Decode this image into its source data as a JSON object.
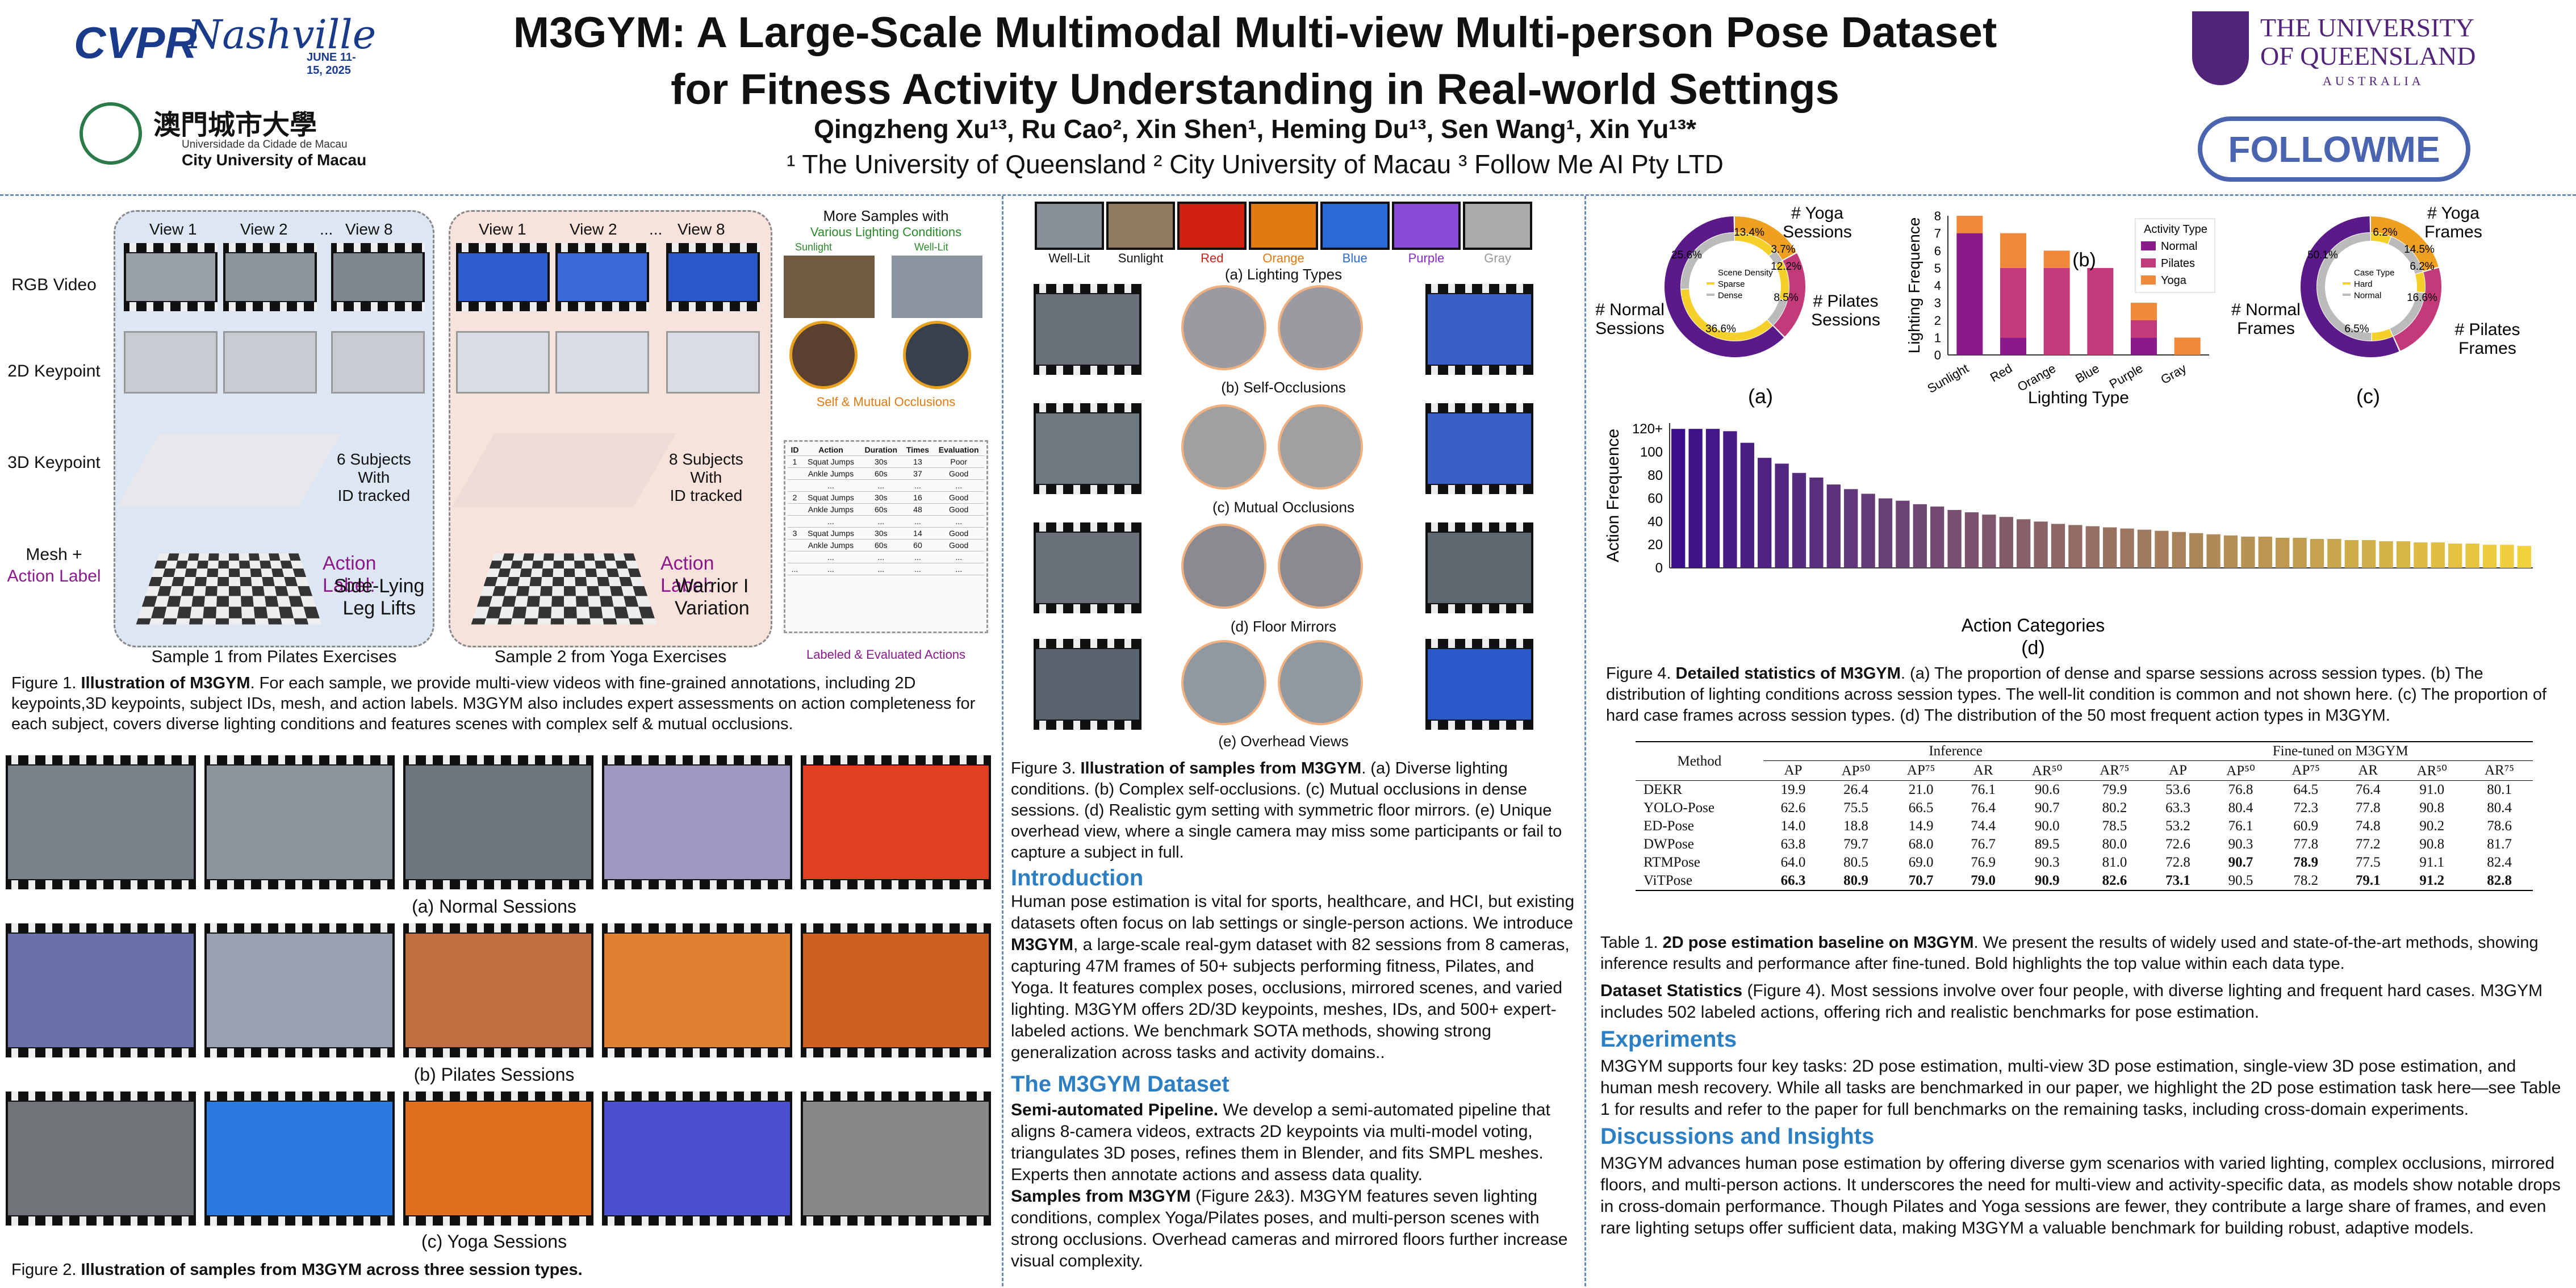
{
  "header": {
    "title_line1": "M3GYM: A Large-Scale Multimodal Multi-view Multi-person Pose Dataset",
    "title_line2": "for Fitness Activity Understanding in Real-world Settings",
    "authors": "Qingzheng Xu¹³, Ru Cao², Xin Shen¹, Heming Du¹³, Sen Wang¹, Xin Yu¹³*",
    "affiliations": "¹ The University of Queensland        ² City University of Macau        ³ Follow Me AI Pty LTD",
    "cvpr": "CVPR",
    "cvpr_city": "Nashville",
    "cvpr_date": "JUNE 11-15, 2025",
    "cityu_cn": "澳門城市大學",
    "cityu_pt": "Universidade da Cidade de Macau",
    "cityu_en": "City University of Macau",
    "uq_line1": "THE UNIVERSITY",
    "uq_line2": "OF QUEENSLAND",
    "uq_line3": "AUSTRALIA",
    "followme": "FOLLOWME"
  },
  "fig1": {
    "row_labels": [
      "RGB Video",
      "2D Keypoint",
      "3D Keypoint",
      "Mesh +"
    ],
    "row_label_action": "Action Label",
    "views": [
      "View 1",
      "View 2",
      "...",
      "View 8"
    ],
    "pilates_subjects": "6 Subjects\nWith\nID tracked",
    "yoga_subjects": "8 Subjects\nWith\nID tracked",
    "action_label_title": "Action Label:",
    "pilates_action": "Side-Lying\nLeg Lifts",
    "yoga_action": "Warrior I\nVariation",
    "sample1": "Sample 1 from Pilates Exercises",
    "sample2": "Sample 2 from Yoga Exercises",
    "more_samples": "More Samples with",
    "various_lighting": "Various Lighting Conditions",
    "sunlight": "Sunlight",
    "welllit": "Well-Lit",
    "self_mutual": "Self & Mutual Occlusions",
    "labeled": "Labeled & Evaluated Actions",
    "tbl_header": [
      "ID",
      "Action",
      "Duration",
      "Times",
      "Evaluation"
    ],
    "tbl_rows": [
      [
        "1",
        "Squat Jumps",
        "30s",
        "13",
        "Poor"
      ],
      [
        "",
        "Ankle Jumps",
        "60s",
        "37",
        "Good"
      ],
      [
        "",
        "...",
        "...",
        "...",
        "..."
      ],
      [
        "2",
        "Squat Jumps",
        "30s",
        "16",
        "Good"
      ],
      [
        "",
        "Ankle Jumps",
        "60s",
        "48",
        "Good"
      ],
      [
        "",
        "...",
        "...",
        "...",
        "..."
      ],
      [
        "3",
        "Squat Jumps",
        "30s",
        "14",
        "Good"
      ],
      [
        "",
        "Ankle Jumps",
        "60s",
        "60",
        "Good"
      ],
      [
        "",
        "...",
        "...",
        "...",
        "..."
      ],
      [
        "...",
        "...",
        "...",
        "...",
        "..."
      ]
    ],
    "caption_bold": "Illustration of M3GYM",
    "caption_prefix": "Figure 1. ",
    "caption_text": ". For each sample, we provide multi-view videos with fine-grained annotations, including 2D keypoints,3D keypoints, subject IDs, mesh, and action labels. M3GYM also includes expert assessments on action completeness for each subject, covers diverse lighting conditions and features scenes with complex self & mutual occlusions."
  },
  "fig2": {
    "labels": [
      "(a) Normal Sessions",
      "(b) Pilates Sessions",
      "(c) Yoga Sessions"
    ],
    "caption_prefix": "Figure 2. ",
    "caption_bold": "Illustration of samples from M3GYM across three session types."
  },
  "fig3": {
    "lighting_labels": [
      "Well-Lit",
      "Sunlight",
      "Red",
      "Orange",
      "Blue",
      "Purple",
      "Gray"
    ],
    "lighting_colors": [
      "#111",
      "#111",
      "#d0201a",
      "#e07a10",
      "#2a6ad8",
      "#8a2ad0",
      "#999"
    ],
    "sub": [
      "(a) Lighting Types",
      "(b) Self-Occlusions",
      "(c) Mutual Occlusions",
      "(d) Floor Mirrors",
      "(e) Overhead Views"
    ],
    "caption_prefix": "Figure 3. ",
    "caption_bold": "Illustration of samples from M3GYM",
    "caption_text": ". (a) Diverse lighting conditions. (b) Complex self-occlusions. (c) Mutual occlusions in dense sessions. (d) Realistic gym setting with symmetric floor mirrors. (e) Unique overhead view, where a single camera may miss some participants or fail to capture a subject in full."
  },
  "intro": {
    "heading": "Introduction",
    "text_a": "Human pose estimation is vital for sports, healthcare, and HCI, but existing datasets often focus on lab settings or single-person actions. We introduce ",
    "text_bold": "M3GYM",
    "text_b": ", a large-scale real-gym dataset with 82 sessions from 8 cameras, capturing 47M frames of 50+ subjects performing fitness, Pilates, and Yoga. It features complex poses, occlusions, mirrored scenes, and varied lighting. M3GYM offers 2D/3D keypoints, meshes, IDs, and 500+ expert-labeled actions. We benchmark SOTA methods, showing strong generalization across tasks and activity domains.."
  },
  "dataset": {
    "heading": "The M3GYM Dataset",
    "p1_bold": "Semi-automated Pipeline.",
    "p1": " We develop a semi-automated pipeline that aligns 8-camera videos, extracts 2D keypoints via multi-model voting, triangulates 3D poses, refines them in Blender, and fits SMPL meshes. Experts then annotate actions and assess data quality.",
    "p2_bold": "Samples from M3GYM",
    "p2": " (Figure 2&3). M3GYM features seven lighting conditions, complex Yoga/Pilates poses, and multi-person scenes with strong occlusions. Overhead cameras and mirrored floors further increase visual complexity."
  },
  "fig4": {
    "donut_a": {
      "top": "# Yoga\nSessions",
      "left": "# Normal\nSessions",
      "right": "# Pilates\nSessions",
      "label": "(a)",
      "legend_title": "Scene Density",
      "legend": [
        "Sparse",
        "Dense"
      ],
      "values": [
        13.4,
        3.7,
        12.2,
        8.5,
        36.6,
        25.6
      ],
      "pct_labels": [
        "13.4%",
        "3.7%",
        "12.2%",
        "8.5%",
        "36.6%",
        "25.6%"
      ]
    },
    "donut_c": {
      "top": "# Yoga\nFrames",
      "left": "# Normal\nFrames",
      "right": "# Pilates\nFrames",
      "label": "(c)",
      "legend_title": "Case Type",
      "legend": [
        "Hard",
        "Normal"
      ],
      "values": [
        6.2,
        14.5,
        6.2,
        16.6,
        6.5,
        50.1
      ],
      "pct_labels": [
        "6.2%",
        "14.5%",
        "6.2%",
        "16.6%",
        "6.5%",
        "50.1%"
      ]
    },
    "label_b": "(b)",
    "label_d": "(d)",
    "caption_prefix": "Figure 4. ",
    "caption_bold": "Detailed statistics of M3GYM",
    "caption_text": ". (a) The proportion of dense and sparse sessions across session types. (b) The distribution of lighting conditions across session types. The well-lit condition is common and not shown here. (c) The proportion of hard case frames across session types. (d) The distribution of the 50 most frequent action types in M3GYM."
  },
  "chart_data": [
    {
      "type": "bar",
      "stacked": true,
      "categories": [
        "Sunlight",
        "Red",
        "Orange",
        "Blue",
        "Purple",
        "Gray"
      ],
      "series": [
        {
          "name": "Normal",
          "values": [
            7,
            1,
            0,
            0,
            1,
            0
          ]
        },
        {
          "name": "Pilates",
          "values": [
            0,
            4,
            5,
            5,
            1,
            0
          ]
        },
        {
          "name": "Yoga",
          "values": [
            1,
            2,
            1,
            0,
            1,
            1
          ]
        }
      ],
      "xlabel": "Lighting Type",
      "ylabel": "Lighting Frequence",
      "ylim": [
        0,
        8
      ],
      "yticks": [
        0,
        1,
        2,
        3,
        4,
        5,
        6,
        7,
        8
      ],
      "legend_title": "Activity Type",
      "legend_position": "top-right",
      "colors": [
        "#8a1a8a",
        "#c23a7a",
        "#f08a3a"
      ]
    },
    {
      "type": "bar",
      "xlabel": "Action Categories",
      "ylabel": "Action Frequence",
      "ylim": [
        0,
        125
      ],
      "yticks": [
        "0",
        "20",
        "40",
        "60",
        "80",
        "100",
        "120+"
      ],
      "values": [
        120,
        120,
        120,
        118,
        108,
        95,
        90,
        82,
        78,
        72,
        68,
        64,
        60,
        58,
        55,
        53,
        50,
        48,
        46,
        44,
        42,
        40,
        38,
        37,
        36,
        35,
        34,
        33,
        32,
        31,
        30,
        29,
        28,
        27,
        27,
        26,
        26,
        25,
        25,
        24,
        24,
        23,
        23,
        22,
        22,
        21,
        21,
        20,
        20,
        19
      ],
      "colors_from": "#3b0f8a",
      "colors_to": "#f2d23a"
    }
  ],
  "table1": {
    "col_method": "Method",
    "grp_inf": "Inference",
    "grp_ft": "Fine-tuned on M3GYM",
    "cols": [
      "AP",
      "AP⁵⁰",
      "AP⁷⁵",
      "AR",
      "AR⁵⁰",
      "AR⁷⁵",
      "AP",
      "AP⁵⁰",
      "AP⁷⁵",
      "AR",
      "AR⁵⁰",
      "AR⁷⁵"
    ],
    "rows": [
      {
        "m": "DEKR",
        "v": [
          "19.9",
          "26.4",
          "21.0",
          "76.1",
          "90.6",
          "79.9",
          "53.6",
          "76.8",
          "64.5",
          "76.4",
          "91.0",
          "80.1"
        ],
        "b": []
      },
      {
        "m": "YOLO-Pose",
        "v": [
          "62.6",
          "75.5",
          "66.5",
          "76.4",
          "90.7",
          "80.2",
          "63.3",
          "80.4",
          "72.3",
          "77.8",
          "90.8",
          "80.4"
        ],
        "b": []
      },
      {
        "m": "ED-Pose",
        "v": [
          "14.0",
          "18.8",
          "14.9",
          "74.4",
          "90.0",
          "78.5",
          "53.2",
          "76.1",
          "60.9",
          "74.8",
          "90.2",
          "78.6"
        ],
        "b": []
      },
      {
        "m": "DWPose",
        "v": [
          "63.8",
          "79.7",
          "68.0",
          "76.7",
          "89.5",
          "80.0",
          "72.6",
          "90.3",
          "77.8",
          "77.2",
          "90.8",
          "81.7"
        ],
        "b": []
      },
      {
        "m": "RTMPose",
        "v": [
          "64.0",
          "80.5",
          "69.0",
          "76.9",
          "90.3",
          "81.0",
          "72.8",
          "90.7",
          "78.9",
          "77.5",
          "91.1",
          "82.4"
        ],
        "b": [
          7,
          8
        ]
      },
      {
        "m": "ViTPose",
        "v": [
          "66.3",
          "80.9",
          "70.7",
          "79.0",
          "90.9",
          "82.6",
          "73.1",
          "90.5",
          "78.2",
          "79.1",
          "91.2",
          "82.8"
        ],
        "b": [
          0,
          1,
          2,
          3,
          4,
          5,
          6,
          9,
          10,
          11
        ]
      }
    ],
    "caption_prefix": "Table 1. ",
    "caption_bold": "2D pose estimation baseline on M3GYM",
    "caption_text": ". We present the results of widely used and state-of-the-art methods, showing inference results and performance after fine-tuned. Bold highlights the top value within each data type."
  },
  "stats": {
    "bold": "Dataset Statistics",
    "text": " (Figure 4). Most sessions involve over four people, with diverse lighting and frequent hard cases. M3GYM includes 502 labeled actions, offering rich and realistic benchmarks for pose estimation."
  },
  "experiments": {
    "heading": "Experiments",
    "text": "M3GYM supports four key tasks: 2D pose estimation, multi-view 3D pose estimation, single-view 3D pose estimation, and human mesh recovery. While all tasks are benchmarked in our paper, we highlight the 2D pose estimation task here—see Table 1 for results and refer to the paper for full benchmarks on the remaining tasks, including cross-domain experiments."
  },
  "discussion": {
    "heading": "Discussions and Insights",
    "text": "M3GYM advances human pose estimation by offering diverse gym scenarios with varied lighting, complex occlusions, mirrored floors, and multi-person actions. It underscores the need for multi-view and activity-specific data, as models show notable drops in cross-domain performance. Though Pilates and Yoga sessions are fewer, they contribute a large share of frames, and even rare lighting setups offer sufficient data, making M3GYM a valuable benchmark for building robust, adaptive models."
  }
}
